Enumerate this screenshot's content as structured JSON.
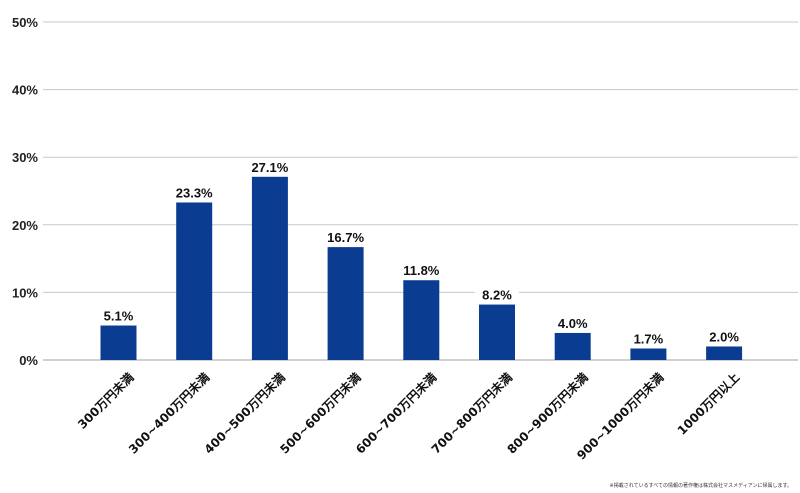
{
  "chart_data": {
    "type": "bar",
    "title": "",
    "xlabel": "",
    "ylabel": "",
    "ylim": [
      0,
      50
    ],
    "yticks": [
      0,
      10,
      20,
      30,
      40,
      50
    ],
    "ytick_suffix": "%",
    "grid": true,
    "legend": "none",
    "bar_color": "#0a3d91",
    "grid_color": "#c8c8c8",
    "categories": [
      "300万円未満",
      "300~400万円未満",
      "400~500万円未満",
      "500~600万円未満",
      "600~700万円未満",
      "700~800万円未満",
      "800~900万円未満",
      "900~1000万円未満",
      "1000万円以上"
    ],
    "values": [
      5.1,
      23.3,
      27.1,
      16.7,
      11.8,
      8.2,
      4.0,
      1.7,
      2.0
    ],
    "value_labels": [
      "5.1%",
      "23.3%",
      "27.1%",
      "16.7%",
      "11.8%",
      "8.2%",
      "4.0%",
      "1.7%",
      "2.0%"
    ]
  },
  "footnote": "※掲載されているすべての情報の著作権は株式会社マスメディアンに帰属します。"
}
